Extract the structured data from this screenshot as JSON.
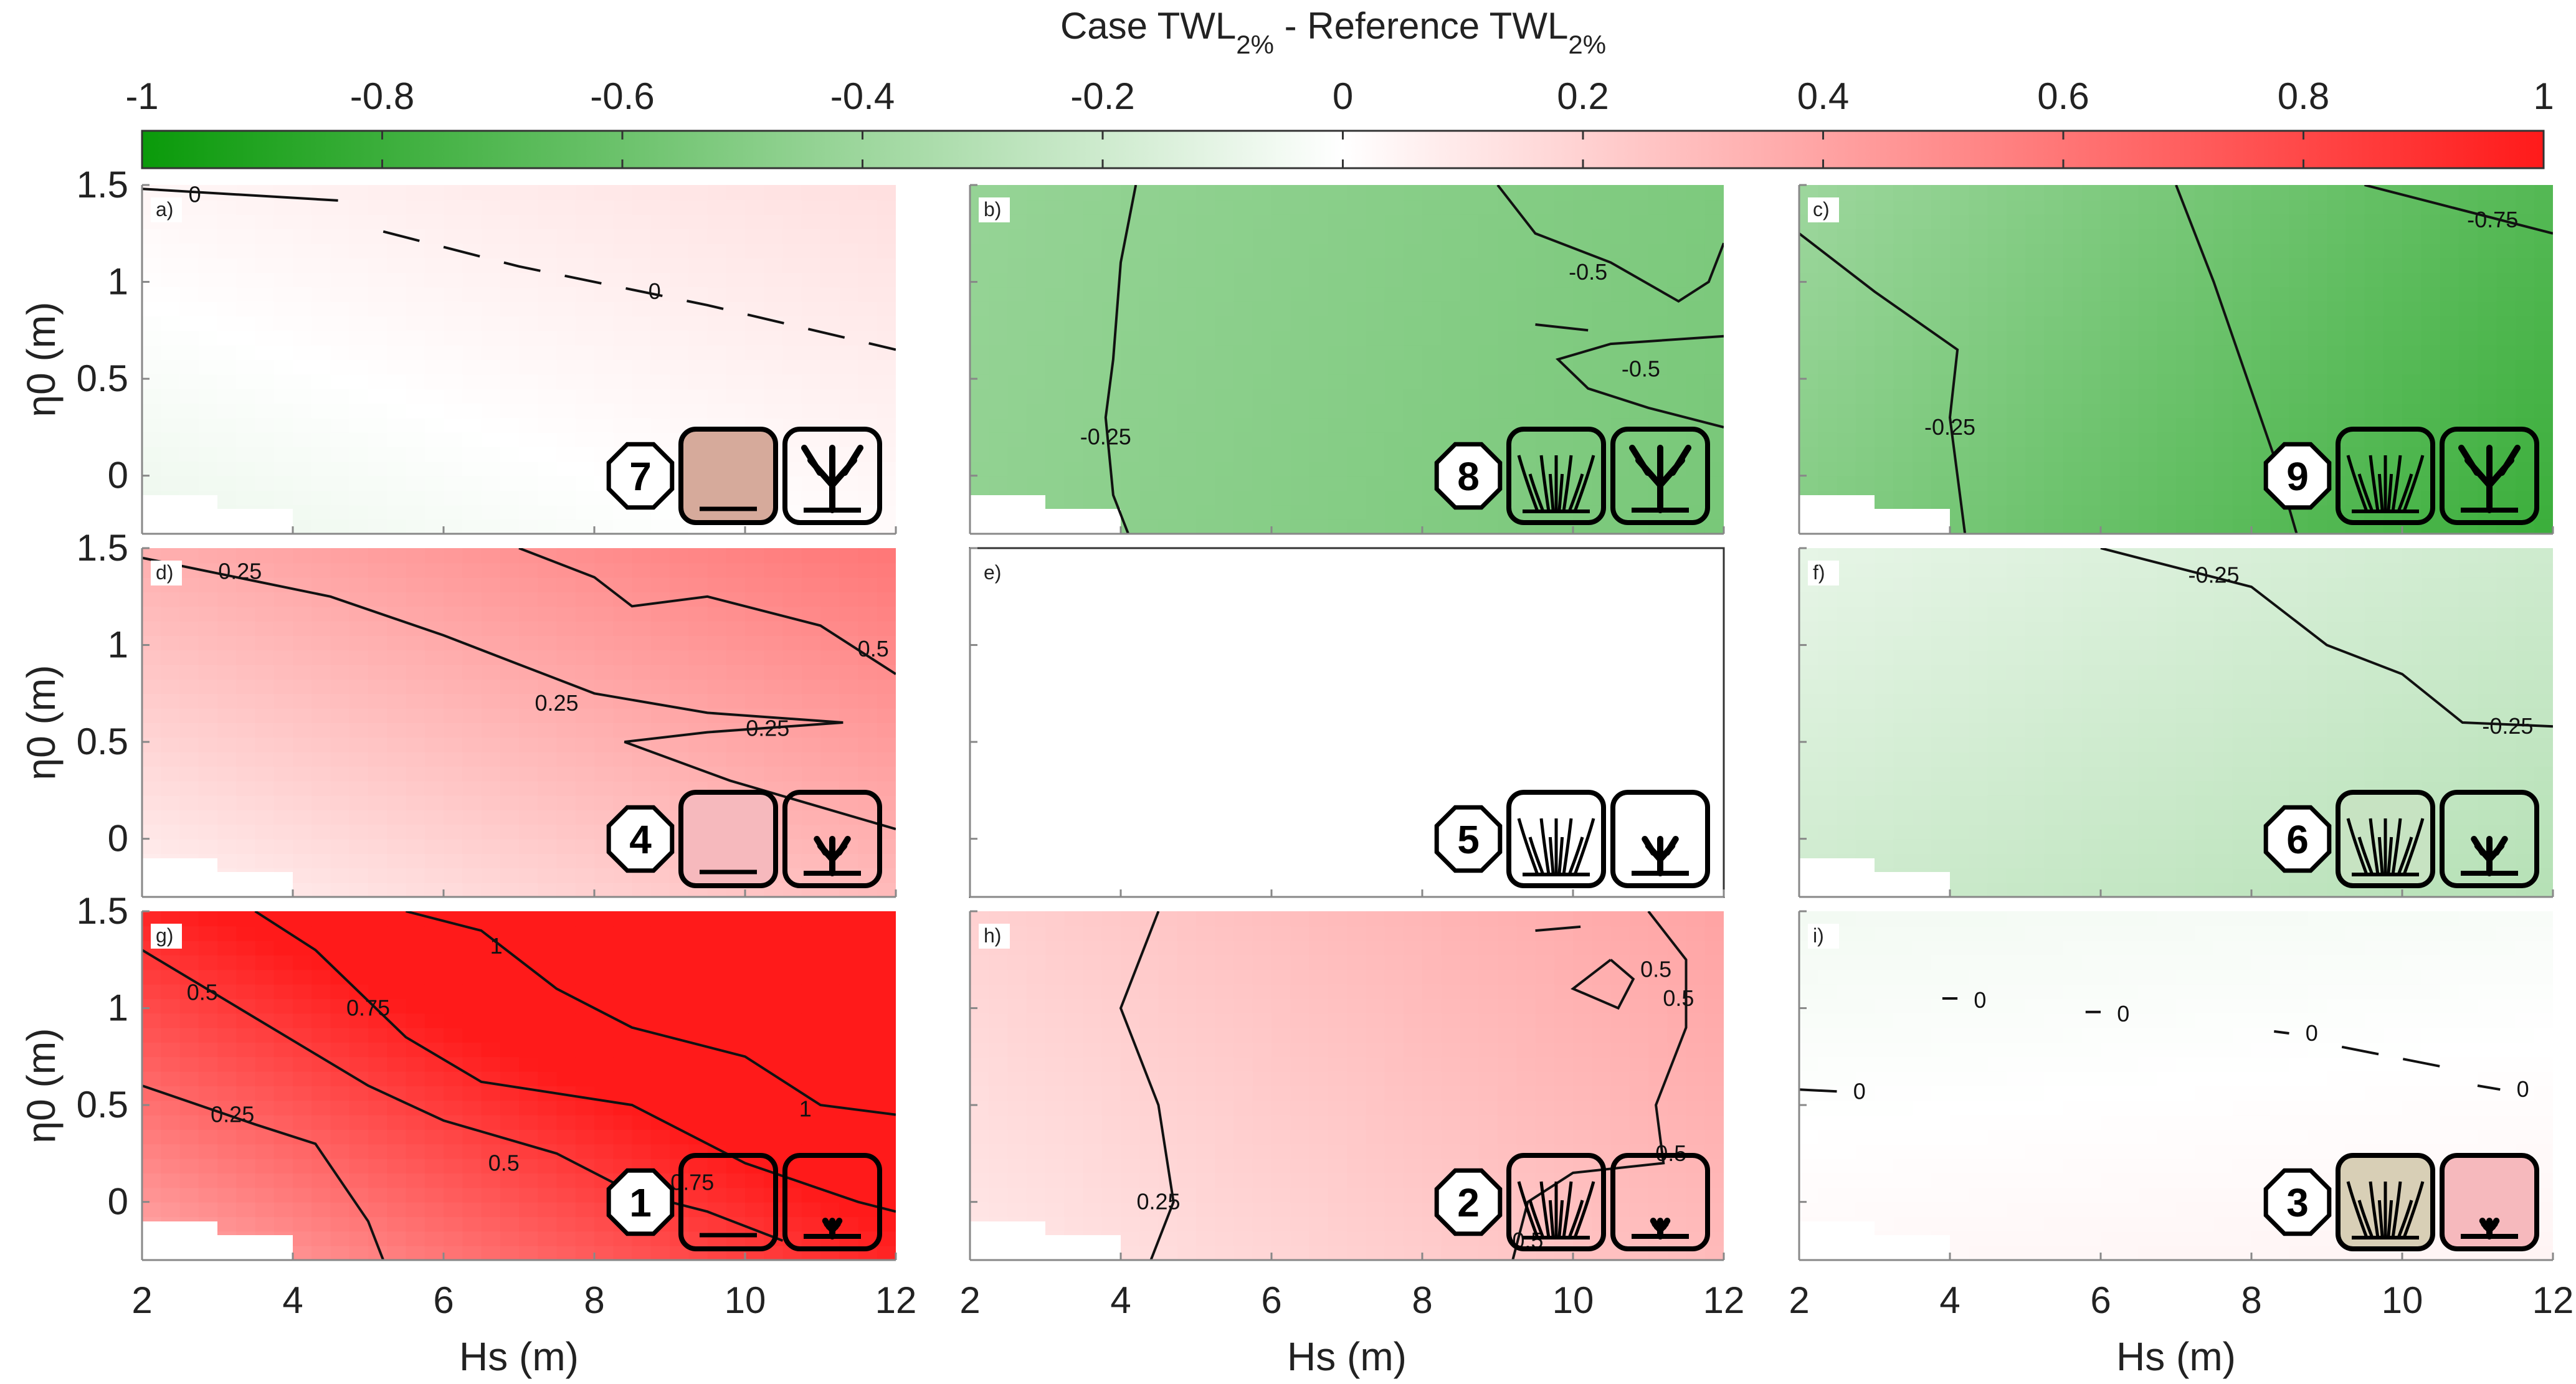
{
  "chart_data": {
    "type": "heatmap",
    "colorbar": {
      "title_main": "Case TWL",
      "title_sub1": "2%",
      "title_mid": " - Reference TWL",
      "title_sub2": "2%",
      "range": [
        -1,
        1
      ],
      "ticks": [
        "-1",
        "-0.8",
        "-0.6",
        "-0.4",
        "-0.2",
        "0",
        "0.2",
        "0.4",
        "0.6",
        "0.8",
        "1"
      ],
      "colors": {
        "negative": "#0a9a0a",
        "zero": "#ffffff",
        "positive": "#ff1a1a"
      }
    },
    "xlabel": "Hs (m)",
    "ylabel": "η0 (m)",
    "xlim": [
      2,
      12
    ],
    "ylim": [
      -0.3,
      1.5
    ],
    "xticks": [
      "2",
      "4",
      "6",
      "8",
      "10",
      "12"
    ],
    "yticks": [
      "0",
      "0.5",
      "1",
      "1.5"
    ],
    "panels": [
      {
        "letter": "a)",
        "number": "7",
        "mean": 0.0,
        "base": -0.08,
        "slope_x": 0.1,
        "slope_y": 0.12,
        "bias_x": 0,
        "bias_y": 0.1,
        "contour_labels": [
          {
            "text": "0",
            "x": 2.7,
            "y": 1.45
          },
          {
            "text": "0",
            "x": 8.8,
            "y": 0.95
          }
        ],
        "contours": [
          {
            "pts": [
              [
                2.0,
                1.48
              ],
              [
                4.6,
                1.42
              ]
            ],
            "dashed": false
          },
          {
            "pts": [
              [
                5.2,
                1.26
              ],
              [
                7.0,
                1.08
              ],
              [
                9.5,
                0.88
              ],
              [
                12,
                0.65
              ]
            ],
            "dashed": true
          }
        ]
      },
      {
        "letter": "b)",
        "number": "8",
        "mean": -0.4,
        "base": -0.45,
        "slope_x": -0.1,
        "slope_y": 0.02,
        "bias_x": 0,
        "bias_y": 0,
        "contour_labels": [
          {
            "text": "-0.25",
            "x": 3.8,
            "y": 0.2
          },
          {
            "text": "-0.5",
            "x": 10.2,
            "y": 1.05
          },
          {
            "text": "-0.5",
            "x": 10.9,
            "y": 0.55
          }
        ],
        "contours": [
          {
            "pts": [
              [
                4.2,
                1.5
              ],
              [
                4.0,
                1.1
              ],
              [
                3.9,
                0.6
              ],
              [
                3.8,
                0.3
              ],
              [
                3.9,
                -0.1
              ],
              [
                4.1,
                -0.3
              ]
            ],
            "dashed": false
          },
          {
            "pts": [
              [
                9.0,
                1.5
              ],
              [
                9.5,
                1.25
              ],
              [
                10.5,
                1.1
              ],
              [
                11.4,
                0.9
              ],
              [
                11.8,
                1.0
              ],
              [
                12,
                1.2
              ]
            ],
            "dashed": false
          },
          {
            "pts": [
              [
                9.5,
                0.78
              ],
              [
                10.2,
                0.75
              ]
            ],
            "dashed": false
          },
          {
            "pts": [
              [
                12,
                0.25
              ],
              [
                11.0,
                0.35
              ],
              [
                10.2,
                0.45
              ],
              [
                9.8,
                0.6
              ],
              [
                10.5,
                0.68
              ],
              [
                12,
                0.72
              ]
            ],
            "dashed": false
          }
        ]
      },
      {
        "letter": "c)",
        "number": "9",
        "mean": -0.55,
        "base": -0.5,
        "slope_x": -0.3,
        "slope_y": 0.1,
        "bias_x": 0,
        "bias_y": 0,
        "contour_labels": [
          {
            "text": "-0.25",
            "x": 4.0,
            "y": 0.25
          },
          {
            "text": "-0.75",
            "x": 11.2,
            "y": 1.32
          }
        ],
        "contours": [
          {
            "pts": [
              [
                2.0,
                1.25
              ],
              [
                3.0,
                0.95
              ],
              [
                4.1,
                0.65
              ],
              [
                4.0,
                0.3
              ],
              [
                4.2,
                -0.3
              ]
            ],
            "dashed": false
          },
          {
            "pts": [
              [
                7.0,
                1.5
              ],
              [
                7.5,
                1.0
              ],
              [
                7.9,
                0.55
              ],
              [
                8.3,
                0.1
              ],
              [
                8.6,
                -0.3
              ]
            ],
            "dashed": false
          },
          {
            "pts": [
              [
                9.5,
                1.5
              ],
              [
                10.5,
                1.4
              ],
              [
                12,
                1.25
              ]
            ],
            "dashed": false
          }
        ]
      },
      {
        "letter": "d)",
        "number": "4",
        "mean": 0.3,
        "base": 0.05,
        "slope_x": 0.25,
        "slope_y": 0.3,
        "bias_x": 0,
        "bias_y": 0,
        "contour_labels": [
          {
            "text": "0.25",
            "x": 3.3,
            "y": 1.38
          },
          {
            "text": "0.25",
            "x": 7.5,
            "y": 0.7
          },
          {
            "text": "0.25",
            "x": 10.3,
            "y": 0.57
          },
          {
            "text": "0.5",
            "x": 11.7,
            "y": 0.98
          }
        ],
        "contours": [
          {
            "pts": [
              [
                2.0,
                1.45
              ],
              [
                4.5,
                1.25
              ],
              [
                6.0,
                1.05
              ],
              [
                7.0,
                0.9
              ],
              [
                8.0,
                0.75
              ],
              [
                9.5,
                0.65
              ],
              [
                11.3,
                0.6
              ],
              [
                9.5,
                0.55
              ],
              [
                8.4,
                0.5
              ],
              [
                9.8,
                0.3
              ],
              [
                12,
                0.05
              ]
            ],
            "dashed": false
          },
          {
            "pts": [
              [
                7.0,
                1.5
              ],
              [
                8.0,
                1.35
              ],
              [
                8.5,
                1.2
              ],
              [
                9.5,
                1.25
              ],
              [
                11.0,
                1.1
              ],
              [
                12,
                0.85
              ]
            ],
            "dashed": false
          }
        ]
      },
      {
        "letter": "e)",
        "number": "5",
        "mean": 0.0,
        "base": 0.0,
        "slope_x": 0.0,
        "slope_y": 0.0,
        "bias_x": 0,
        "bias_y": 0,
        "contour_labels": [],
        "contours": []
      },
      {
        "letter": "f)",
        "number": "6",
        "mean": -0.15,
        "base": -0.2,
        "slope_x": -0.1,
        "slope_y": 0.1,
        "bias_x": 0,
        "bias_y": 0,
        "contour_labels": [
          {
            "text": "-0.25",
            "x": 7.5,
            "y": 1.36
          },
          {
            "text": "-0.25",
            "x": 11.4,
            "y": 0.58
          }
        ],
        "contours": [
          {
            "pts": [
              [
                6.0,
                1.5
              ],
              [
                8.0,
                1.3
              ],
              [
                9.0,
                1.0
              ],
              [
                10.0,
                0.85
              ],
              [
                10.8,
                0.6
              ],
              [
                12,
                0.58
              ]
            ],
            "dashed": false
          }
        ]
      },
      {
        "letter": "g)",
        "number": "1",
        "mean": 0.75,
        "base": 0.35,
        "slope_x": 0.6,
        "slope_y": 0.6,
        "bias_x": 0,
        "bias_y": 0,
        "contour_labels": [
          {
            "text": "0.25",
            "x": 3.2,
            "y": 0.45
          },
          {
            "text": "0.5",
            "x": 2.8,
            "y": 1.08
          },
          {
            "text": "0.5",
            "x": 6.8,
            "y": 0.2
          },
          {
            "text": "0.75",
            "x": 5.0,
            "y": 1.0
          },
          {
            "text": "0.75",
            "x": 9.3,
            "y": 0.1
          },
          {
            "text": "1",
            "x": 6.7,
            "y": 1.32
          },
          {
            "text": "1",
            "x": 10.8,
            "y": 0.48
          }
        ],
        "contours": [
          {
            "pts": [
              [
                2.0,
                0.6
              ],
              [
                3.5,
                0.4
              ],
              [
                4.3,
                0.3
              ],
              [
                5.0,
                -0.1
              ],
              [
                5.2,
                -0.3
              ]
            ],
            "dashed": false
          },
          {
            "pts": [
              [
                2.0,
                1.3
              ],
              [
                3.5,
                0.95
              ],
              [
                5.0,
                0.6
              ],
              [
                6.0,
                0.42
              ],
              [
                7.5,
                0.25
              ],
              [
                8.5,
                0.05
              ],
              [
                9.5,
                -0.05
              ],
              [
                10.5,
                -0.2
              ]
            ],
            "dashed": false
          },
          {
            "pts": [
              [
                3.5,
                1.5
              ],
              [
                4.3,
                1.3
              ],
              [
                5.5,
                0.85
              ],
              [
                6.5,
                0.62
              ],
              [
                8.5,
                0.5
              ],
              [
                10.0,
                0.2
              ],
              [
                11.5,
                0.0
              ],
              [
                12,
                -0.05
              ]
            ],
            "dashed": false
          },
          {
            "pts": [
              [
                5.5,
                1.5
              ],
              [
                6.5,
                1.4
              ],
              [
                7.5,
                1.1
              ],
              [
                8.5,
                0.9
              ],
              [
                10.0,
                0.75
              ],
              [
                11.0,
                0.5
              ],
              [
                12,
                0.45
              ]
            ],
            "dashed": false
          }
        ]
      },
      {
        "letter": "h)",
        "number": "2",
        "mean": 0.3,
        "base": 0.1,
        "slope_x": 0.2,
        "slope_y": 0.1,
        "bias_x": 0,
        "bias_y": 0,
        "contour_labels": [
          {
            "text": "0.25",
            "x": 4.5,
            "y": 0.0
          },
          {
            "text": "0.5",
            "x": 11.1,
            "y": 1.2
          },
          {
            "text": "0.5",
            "x": 11.4,
            "y": 1.05
          },
          {
            "text": "0.5",
            "x": 11.3,
            "y": 0.25
          },
          {
            "text": "0.5",
            "x": 9.4,
            "y": -0.2
          }
        ],
        "contours": [
          {
            "pts": [
              [
                4.5,
                1.5
              ],
              [
                4.0,
                1.0
              ],
              [
                4.5,
                0.5
              ],
              [
                4.7,
                0.0
              ],
              [
                4.4,
                -0.3
              ]
            ],
            "dashed": false
          },
          {
            "pts": [
              [
                9.5,
                1.4
              ],
              [
                10.1,
                1.42
              ]
            ],
            "dashed": false
          },
          {
            "pts": [
              [
                10.5,
                1.25
              ],
              [
                10.0,
                1.1
              ],
              [
                10.6,
                1.0
              ],
              [
                10.8,
                1.15
              ],
              [
                10.5,
                1.25
              ]
            ],
            "dashed": false
          },
          {
            "pts": [
              [
                11.0,
                1.5
              ],
              [
                11.5,
                1.25
              ],
              [
                11.5,
                0.9
              ],
              [
                11.1,
                0.5
              ],
              [
                11.2,
                0.2
              ],
              [
                10.0,
                0.15
              ],
              [
                9.4,
                0.0
              ],
              [
                9.2,
                -0.3
              ]
            ],
            "dashed": false
          }
        ]
      },
      {
        "letter": "i)",
        "number": "3",
        "mean": 0.05,
        "base": 0.03,
        "slope_x": 0.02,
        "slope_y": -0.08,
        "bias_x": 0,
        "bias_y": 0,
        "contour_labels": [
          {
            "text": "0",
            "x": 4.4,
            "y": 1.04
          },
          {
            "text": "0",
            "x": 6.3,
            "y": 0.97
          },
          {
            "text": "0",
            "x": 8.8,
            "y": 0.87
          },
          {
            "text": "0",
            "x": 11.6,
            "y": 0.58
          },
          {
            "text": "0",
            "x": 2.8,
            "y": 0.57
          }
        ],
        "contours": [
          {
            "pts": [
              [
                3.9,
                1.05
              ],
              [
                4.1,
                1.05
              ]
            ],
            "dashed": false
          },
          {
            "pts": [
              [
                5.8,
                0.98
              ],
              [
                6.0,
                0.98
              ]
            ],
            "dashed": false
          },
          {
            "pts": [
              [
                8.3,
                0.88
              ],
              [
                8.5,
                0.87
              ]
            ],
            "dashed": false
          },
          {
            "pts": [
              [
                9.2,
                0.8
              ],
              [
                10.5,
                0.7
              ]
            ],
            "dashed": true
          },
          {
            "pts": [
              [
                11.0,
                0.6
              ],
              [
                11.3,
                0.58
              ]
            ],
            "dashed": false
          },
          {
            "pts": [
              [
                2.0,
                0.58
              ],
              [
                2.5,
                0.57
              ]
            ],
            "dashed": false
          }
        ]
      }
    ]
  }
}
